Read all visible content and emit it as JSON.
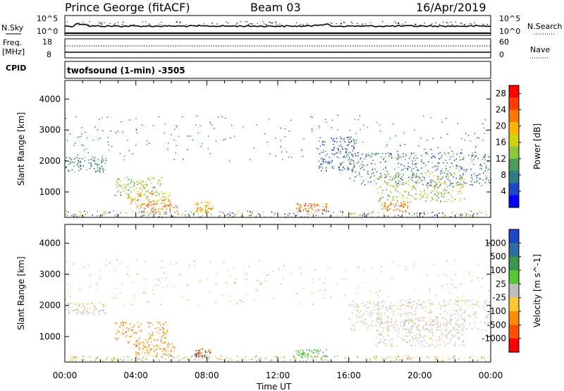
{
  "header": {
    "site": "Prince George (fitACF)",
    "beam": "Beam 03",
    "date": "16/Apr/2019"
  },
  "strip_labels": {
    "nsky": "N.Sky",
    "nsearch": "N.Search",
    "freq_line1": "Freq.",
    "freq_line2": "[MHz]",
    "nave": "Nave",
    "cpid": "CPID",
    "left_noise_top": "10^5",
    "left_noise_bottom": "10^0",
    "right_noise_top": "10^5",
    "right_noise_bottom": "10^0",
    "freq_top": "18",
    "freq_bottom": "8",
    "nave_top": "60",
    "nave_bottom": "0",
    "cpid_text": "twofsound (1-min) -3505"
  },
  "chart_data": [
    {
      "type": "heatmap",
      "name": "power",
      "ylabel": "Slant Range [km]",
      "xlabel": "",
      "x_ticks": [
        "00:00",
        "04:00",
        "08:00",
        "12:00",
        "16:00",
        "20:00",
        "00:00"
      ],
      "y_ticks": [
        1000,
        2000,
        3000,
        4000
      ],
      "ylim": [
        180,
        4600
      ],
      "xlim_hours": [
        0,
        24
      ],
      "colorbar": {
        "label": "Power [dB]",
        "ticks": [
          4,
          8,
          12,
          16,
          20,
          24,
          28
        ],
        "range": [
          0,
          30
        ],
        "colors": [
          "#0000ff",
          "#1e46c8",
          "#2d7d82",
          "#4b9b5a",
          "#8cc83c",
          "#d2d20a",
          "#ffb400",
          "#ff7800",
          "#ff3c00",
          "#ff0000"
        ]
      },
      "features": [
        {
          "t0": 0.0,
          "t1": 2.3,
          "r0": 1650,
          "r1": 2150,
          "level": 8
        },
        {
          "t0": 2.8,
          "t1": 5.5,
          "r0": 900,
          "r1": 1500,
          "level": 14
        },
        {
          "t0": 3.5,
          "t1": 6.0,
          "r0": 600,
          "r1": 1000,
          "level": 20
        },
        {
          "t0": 4.0,
          "t1": 6.3,
          "r0": 350,
          "r1": 650,
          "level": 22
        },
        {
          "t0": 7.3,
          "t1": 8.3,
          "r0": 350,
          "r1": 700,
          "level": 20
        },
        {
          "t0": 13.0,
          "t1": 14.8,
          "r0": 400,
          "r1": 650,
          "level": 24
        },
        {
          "t0": 14.3,
          "t1": 16.5,
          "r0": 1700,
          "r1": 2800,
          "level": 6
        },
        {
          "t0": 16.0,
          "t1": 24.0,
          "r0": 1200,
          "r1": 2300,
          "level": 8
        },
        {
          "t0": 17.5,
          "t1": 22.5,
          "r0": 700,
          "r1": 1600,
          "level": 14
        },
        {
          "t0": 17.8,
          "t1": 19.3,
          "r0": 400,
          "r1": 700,
          "level": 22
        }
      ]
    },
    {
      "type": "heatmap",
      "name": "velocity",
      "ylabel": "Slant Range [km]",
      "xlabel": "Time UT",
      "x_ticks": [
        "00:00",
        "04:00",
        "08:00",
        "12:00",
        "16:00",
        "20:00",
        "00:00"
      ],
      "y_ticks": [
        1000,
        2000,
        3000,
        4000
      ],
      "ylim": [
        180,
        4600
      ],
      "xlim_hours": [
        0,
        24
      ],
      "colorbar": {
        "label": "Velocity [m s^-1]",
        "tick_labels": [
          "1000",
          "500",
          "100",
          "25",
          "-25",
          "-100",
          "-500",
          "-1000"
        ],
        "colors": [
          "#1e46c8",
          "#2d6ea0",
          "#3c9650",
          "#55c832",
          "#bebebe",
          "#ffc832",
          "#ff8c00",
          "#ff5000",
          "#ff0000"
        ]
      },
      "features": [
        {
          "t0": 0.0,
          "t1": 2.3,
          "r0": 1700,
          "r1": 2100,
          "class": "near-zero"
        },
        {
          "t0": 2.8,
          "t1": 5.8,
          "r0": 800,
          "r1": 1500,
          "class": "negative"
        },
        {
          "t0": 3.8,
          "t1": 6.2,
          "r0": 400,
          "r1": 800,
          "class": "negative"
        },
        {
          "t0": 7.3,
          "t1": 8.2,
          "r0": 350,
          "r1": 650,
          "class": "mixed"
        },
        {
          "t0": 13.0,
          "t1": 14.8,
          "r0": 350,
          "r1": 600,
          "class": "positive"
        },
        {
          "t0": 16.0,
          "t1": 24.0,
          "r0": 1200,
          "r1": 2200,
          "class": "near-zero"
        },
        {
          "t0": 17.5,
          "t1": 22.5,
          "r0": 700,
          "r1": 1600,
          "class": "near-zero"
        }
      ]
    }
  ],
  "colors": {
    "axis": "#000000",
    "background": "#ffffff"
  }
}
